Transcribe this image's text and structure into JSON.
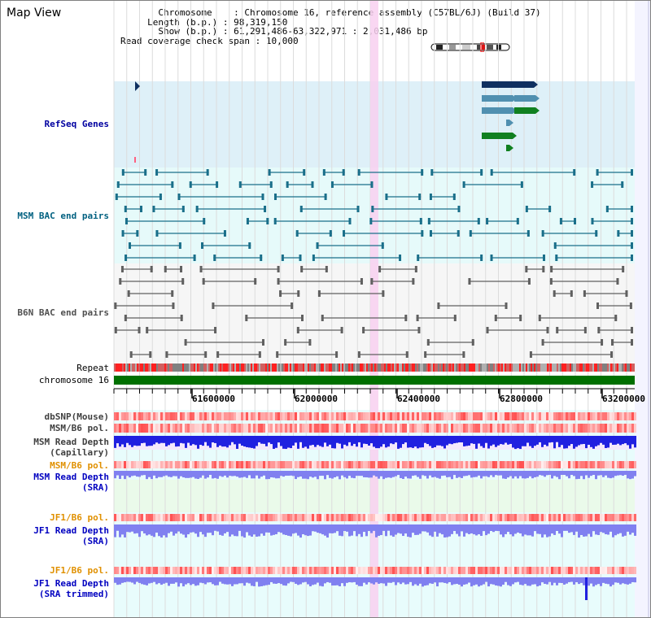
{
  "page": {
    "title": "Map View"
  },
  "info": {
    "chromosome_label": "Chromosome",
    "chromosome_value": "Chromosome 16, reference assembly (C57BL/6J) (Build 37)",
    "length_label": "Length (b.p.)",
    "length_value": "98,319,150",
    "show_label": "Show (b.p.)",
    "show_value": "61,291,486-63,322,971 : 2,031,486 bp",
    "span_label": "Read coverage check span",
    "span_value": "10,000"
  },
  "tracks": {
    "refseq": {
      "label": "RefSeq Genes",
      "color": "#0000a0"
    },
    "msm_bac": {
      "label": "MSM BAC end pairs",
      "color": "#006080"
    },
    "b6n_bac": {
      "label": "B6N BAC end pairs",
      "color": "#505050"
    },
    "repeat": {
      "label": "Repeat"
    },
    "chromosome": {
      "label": "chromosome 16"
    },
    "dbsnp": {
      "label": "dbSNP(Mouse)"
    },
    "msm_b6_pol_1": {
      "label": "MSM/B6 pol."
    },
    "msm_read_cap": {
      "label1": "MSM Read Depth",
      "label2": "(Capillary)"
    },
    "msm_b6_pol_2": {
      "label": "MSM/B6 pol."
    },
    "msm_read_sra": {
      "label1": "MSM Read Depth",
      "label2": "(SRA)"
    },
    "jf1_b6_pol_1": {
      "label": "JF1/B6 pol."
    },
    "jf1_read_sra": {
      "label1": "JF1 Read Depth",
      "label2": "(SRA)"
    },
    "jf1_b6_pol_2": {
      "label": "JF1/B6 pol."
    },
    "jf1_read_trim": {
      "label1": "JF1 Read Depth",
      "label2": "(SRA trimmed)"
    }
  },
  "axis": {
    "ticks": [
      "61600000",
      "62000000",
      "62400000",
      "62800000",
      "63200000"
    ]
  },
  "colors": {
    "refseq_bg": "#def0f8",
    "msm_bg": "#e6fafa",
    "b6n_bg": "#f6f6f6",
    "chromosome": "#007000",
    "highlight": "#f8d0f0",
    "depth_blue": "#2020e0",
    "depth_light": "#8080f0",
    "pol_red": "#e02020"
  }
}
